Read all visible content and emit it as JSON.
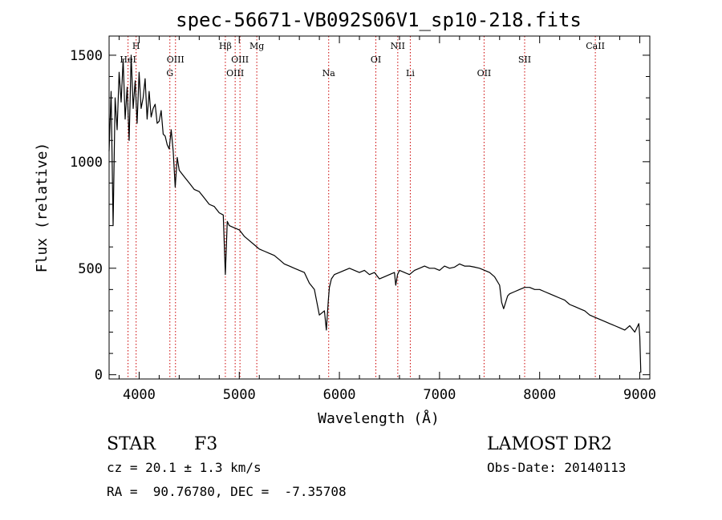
{
  "chart_data": {
    "type": "line",
    "title": "spec-56671-VB092S06V1_sp10-218.fits",
    "xlabel": "Wavelength (Å)",
    "ylabel": "Flux (relative)",
    "xlim": [
      3700,
      9100
    ],
    "ylim": [
      -20,
      1590
    ],
    "x_ticks": [
      4000,
      5000,
      6000,
      7000,
      8000,
      9000
    ],
    "y_ticks": [
      0,
      500,
      1000,
      1500
    ],
    "grid": false,
    "line_color": "#000000",
    "marker_color": "#cc0000",
    "series": [
      {
        "x": [
          3700,
          3720,
          3740,
          3760,
          3780,
          3800,
          3820,
          3840,
          3860,
          3880,
          3900,
          3920,
          3940,
          3960,
          3980,
          4000,
          4020,
          4040,
          4060,
          4080,
          4100,
          4120,
          4140,
          4160,
          4180,
          4200,
          4220,
          4240,
          4260,
          4280,
          4300,
          4320,
          4340,
          4360,
          4380,
          4400,
          4450,
          4500,
          4550,
          4600,
          4650,
          4700,
          4750,
          4800,
          4840,
          4861,
          4880,
          4900,
          4950,
          5000,
          5050,
          5100,
          5150,
          5200,
          5250,
          5300,
          5350,
          5400,
          5450,
          5500,
          5550,
          5600,
          5650,
          5700,
          5750,
          5800,
          5850,
          5870,
          5890,
          5900,
          5920,
          5950,
          6000,
          6050,
          6100,
          6150,
          6200,
          6250,
          6300,
          6350,
          6400,
          6450,
          6500,
          6550,
          6563,
          6580,
          6600,
          6650,
          6700,
          6750,
          6800,
          6850,
          6900,
          6950,
          7000,
          7050,
          7100,
          7150,
          7200,
          7250,
          7300,
          7350,
          7400,
          7450,
          7500,
          7550,
          7600,
          7620,
          7640,
          7660,
          7680,
          7700,
          7750,
          7800,
          7850,
          7900,
          7950,
          8000,
          8050,
          8100,
          8150,
          8200,
          8250,
          8300,
          8350,
          8400,
          8450,
          8500,
          8550,
          8600,
          8650,
          8700,
          8750,
          8800,
          8850,
          8900,
          8950,
          8990,
          9000,
          9010
        ],
        "y": [
          1050,
          1330,
          700,
          1300,
          1150,
          1420,
          1280,
          1480,
          1200,
          1350,
          1100,
          1500,
          1250,
          1380,
          1180,
          1420,
          1250,
          1300,
          1390,
          1200,
          1330,
          1210,
          1250,
          1270,
          1180,
          1190,
          1240,
          1130,
          1120,
          1080,
          1060,
          1150,
          1050,
          880,
          1020,
          960,
          930,
          900,
          870,
          860,
          830,
          800,
          790,
          760,
          750,
          470,
          720,
          700,
          690,
          680,
          650,
          630,
          610,
          590,
          580,
          570,
          560,
          540,
          520,
          510,
          500,
          490,
          480,
          430,
          400,
          280,
          300,
          210,
          350,
          410,
          450,
          470,
          480,
          490,
          500,
          490,
          480,
          490,
          470,
          480,
          450,
          460,
          470,
          480,
          420,
          470,
          490,
          480,
          470,
          490,
          500,
          510,
          500,
          500,
          490,
          510,
          500,
          505,
          520,
          510,
          510,
          505,
          500,
          490,
          480,
          460,
          420,
          340,
          310,
          340,
          370,
          380,
          390,
          400,
          410,
          410,
          400,
          400,
          390,
          380,
          370,
          360,
          350,
          330,
          320,
          310,
          300,
          280,
          270,
          260,
          250,
          240,
          230,
          220,
          210,
          230,
          200,
          240,
          180,
          10
        ]
      }
    ],
    "lines": [
      {
        "label": "HeI",
        "x": 3889,
        "row": 2
      },
      {
        "label": "H",
        "x": 3970,
        "row": 1
      },
      {
        "label": "G",
        "x": 4307,
        "row": 3
      },
      {
        "label": "OIII",
        "x": 4363,
        "row": 2
      },
      {
        "label": "Hβ",
        "x": 4861,
        "row": 1
      },
      {
        "label": "OIII",
        "x": 4959,
        "row": 3
      },
      {
        "label": "OIII",
        "x": 5007,
        "row": 2
      },
      {
        "label": "Mg",
        "x": 5175,
        "row": 1
      },
      {
        "label": "Na",
        "x": 5893,
        "row": 3
      },
      {
        "label": "OI",
        "x": 6364,
        "row": 2
      },
      {
        "label": "NII",
        "x": 6583,
        "row": 1
      },
      {
        "label": "Li",
        "x": 6708,
        "row": 3
      },
      {
        "label": "OII",
        "x": 7445,
        "row": 3
      },
      {
        "label": "SII",
        "x": 7850,
        "row": 2
      },
      {
        "label": "CaII",
        "x": 8556,
        "row": 1
      }
    ]
  },
  "info": {
    "class_label": "STAR",
    "subclass": "F3",
    "cz": "cz = 20.1 ± 1.3 km/s",
    "radec": "RA =  90.76780, DEC =  -7.35708",
    "survey": "LAMOST DR2",
    "obs_date": "Obs-Date: 20140113"
  }
}
